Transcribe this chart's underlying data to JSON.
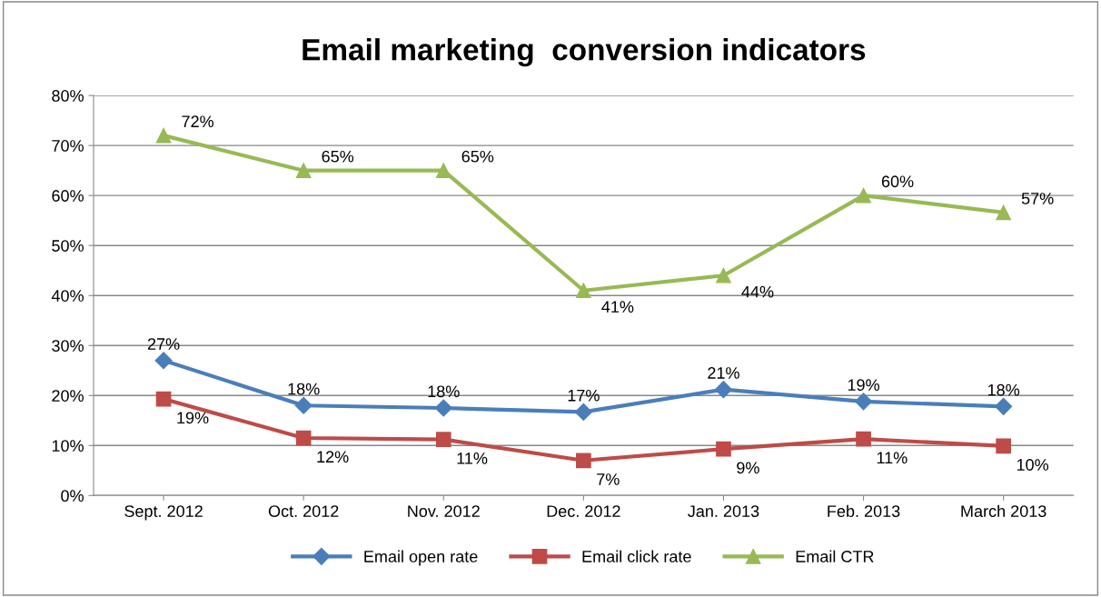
{
  "chart_data": {
    "type": "line",
    "title": "Email marketing  conversion indicators",
    "categories": [
      "Sept. 2012",
      "Oct. 2012",
      "Nov. 2012",
      "Dec. 2012",
      "Jan. 2013",
      "Feb. 2013",
      "March 2013"
    ],
    "series": [
      {
        "name": "Email open rate",
        "color": "#4a7ebb",
        "marker": "diamond",
        "values": [
          27,
          18,
          17.5,
          16.7,
          21.2,
          18.8,
          17.8
        ],
        "value_labels": [
          "27%",
          "18%",
          "18%",
          "17%",
          "21%",
          "19%",
          "18%"
        ]
      },
      {
        "name": "Email click rate",
        "color": "#be4b48",
        "marker": "square",
        "values": [
          19.3,
          11.5,
          11.2,
          7,
          9.3,
          11.3,
          9.9
        ],
        "value_labels": [
          "19%",
          "12%",
          "11%",
          "7%",
          "9%",
          "11%",
          "10%"
        ]
      },
      {
        "name": "Email CTR",
        "color": "#98b954",
        "marker": "triangle",
        "values": [
          72,
          65,
          65,
          41,
          44,
          60,
          56.6
        ],
        "value_labels": [
          "72%",
          "65%",
          "65%",
          "41%",
          "44%",
          "60%",
          "57%"
        ]
      }
    ],
    "ylim": [
      0,
      80
    ],
    "yticks": [
      {
        "value": 0,
        "label": "0%"
      },
      {
        "value": 10,
        "label": "10%"
      },
      {
        "value": 20,
        "label": "20%"
      },
      {
        "value": 30,
        "label": "30%"
      },
      {
        "value": 40,
        "label": "40%"
      },
      {
        "value": 50,
        "label": "50%"
      },
      {
        "value": 60,
        "label": "60%"
      },
      {
        "value": 70,
        "label": "70%"
      },
      {
        "value": 80,
        "label": "80%"
      }
    ],
    "grid": "y",
    "legend": "bottom",
    "line_style": "solid"
  }
}
